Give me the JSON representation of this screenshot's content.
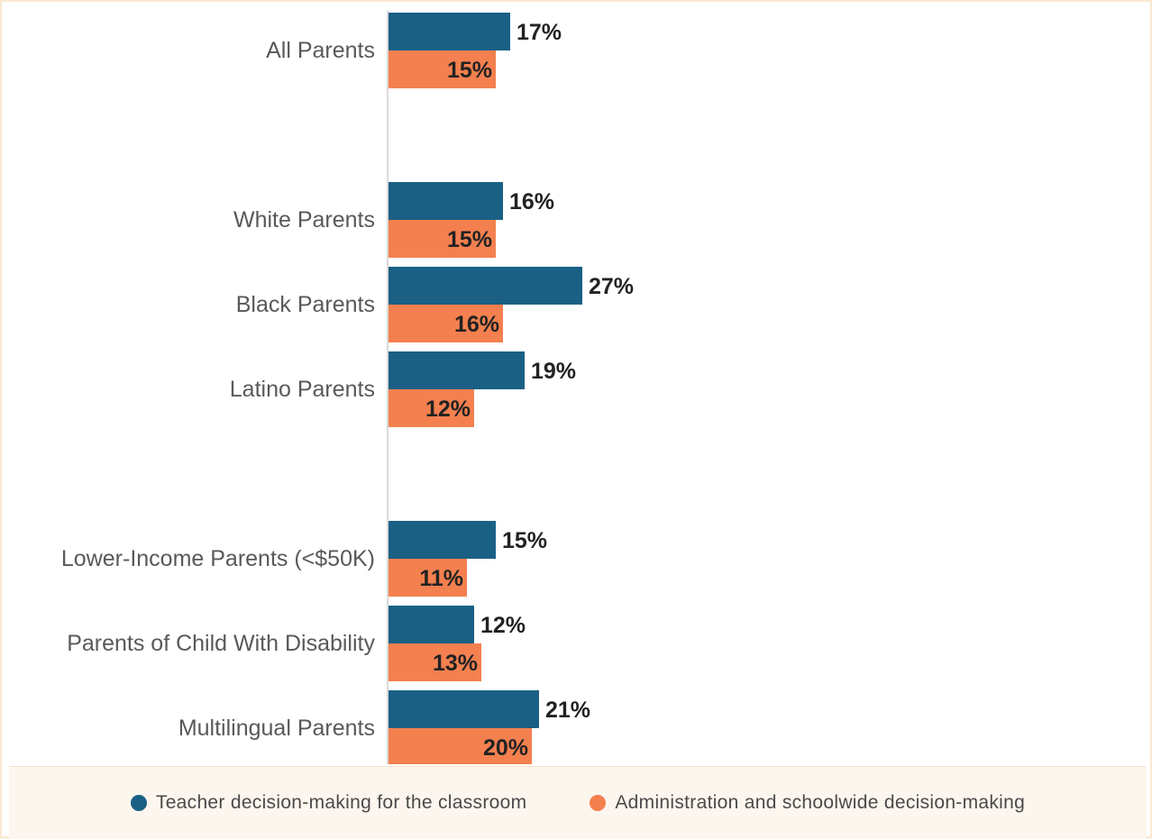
{
  "colors": {
    "series_1": "#1a6085",
    "series_2": "#f4804f",
    "axis": "#d9d9d9"
  },
  "legend": {
    "items": [
      {
        "label": "Teacher decision-making for the classroom",
        "color": "#1a6085"
      },
      {
        "label": "Administration and schoolwide decision-making",
        "color": "#f4804f"
      }
    ]
  },
  "chart_data": {
    "type": "bar",
    "orientation": "horizontal",
    "title": "",
    "xlabel": "",
    "ylabel": "",
    "value_suffix": "%",
    "xlim": [
      0,
      100
    ],
    "grid": false,
    "legend_position": "bottom",
    "groups": [
      {
        "categories": [
          "All Parents"
        ]
      },
      {
        "categories": [
          "White Parents",
          "Black Parents",
          "Latino Parents"
        ]
      },
      {
        "categories": [
          "Lower-Income Parents (<$50K)",
          "Parents of Child With Disability",
          "Multilingual Parents"
        ]
      }
    ],
    "categories": [
      "All Parents",
      "White Parents",
      "Black Parents",
      "Latino Parents",
      "Lower-Income Parents (<$50K)",
      "Parents of Child With Disability",
      "Multilingual Parents"
    ],
    "series": [
      {
        "name": "Teacher decision-making for the classroom",
        "values": [
          17,
          16,
          27,
          19,
          15,
          12,
          21
        ]
      },
      {
        "name": "Administration and schoolwide decision-making",
        "values": [
          15,
          15,
          16,
          12,
          11,
          13,
          20
        ]
      }
    ]
  }
}
